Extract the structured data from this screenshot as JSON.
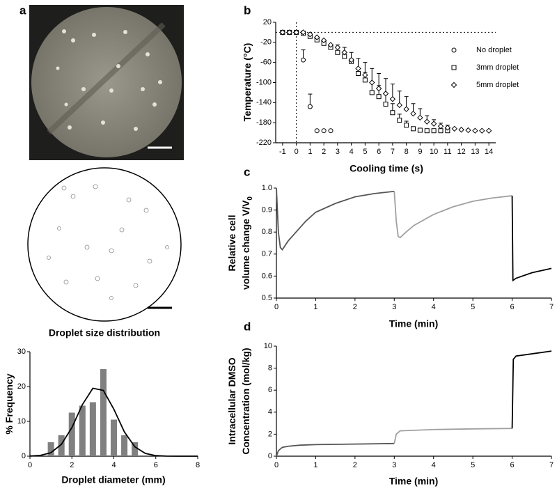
{
  "panel_labels": [
    "a",
    "b",
    "c",
    "d"
  ],
  "chart_data": [
    {
      "type": "bar",
      "title": "Droplet size distribution",
      "xlabel": "Droplet diameter (mm)",
      "ylabel": "% Frequency",
      "xlim": [
        0,
        8
      ],
      "xticks": [
        0,
        2,
        4,
        6,
        8
      ],
      "ylim": [
        0,
        30
      ],
      "yticks": [
        0,
        10,
        20,
        30
      ],
      "series": [
        {
          "type": "bar",
          "color": "#808080",
          "x": [
            1,
            1.5,
            2,
            2.5,
            3,
            3.5,
            4,
            4.5,
            5
          ],
          "values": [
            4,
            6,
            12.5,
            14.5,
            15.5,
            25,
            10.5,
            6,
            4
          ]
        },
        {
          "type": "line",
          "color": "#000000",
          "x": [
            0,
            0.5,
            1,
            1.5,
            2,
            2.5,
            3,
            3.5,
            4,
            4.5,
            5,
            5.5,
            6,
            6.5,
            7,
            8
          ],
          "values": [
            0.04,
            0.22,
            1.0,
            3.4,
            8.2,
            14.8,
            19.5,
            18.9,
            13.5,
            7.0,
            2.7,
            0.8,
            0.16,
            0.02,
            0,
            0
          ]
        }
      ]
    },
    {
      "type": "scatter",
      "xlabel": "Cooling time (s)",
      "ylabel": "Temperature (°C)",
      "xlim": [
        -1.5,
        14.5
      ],
      "xticks": [
        -1,
        0,
        1,
        2,
        3,
        4,
        5,
        6,
        7,
        8,
        9,
        10,
        11,
        12,
        13,
        14
      ],
      "ylim": [
        -220,
        20
      ],
      "yticks": [
        20,
        -20,
        -60,
        -100,
        -140,
        -180,
        -220
      ],
      "hline": 0,
      "vline": 0,
      "legend": "upper right",
      "series": [
        {
          "name": "No droplet",
          "marker": "circle",
          "color": "#000000",
          "x": [
            -1,
            -0.5,
            0,
            0.5,
            1,
            1.5,
            2,
            2.5
          ],
          "values": [
            0,
            0,
            0,
            -55,
            -148,
            -196,
            -196,
            -196
          ],
          "errors": [
            null,
            null,
            null,
            20,
            25,
            null,
            null,
            null
          ]
        },
        {
          "name": "3mm droplet",
          "marker": "square",
          "color": "#000000",
          "x": [
            -1,
            -0.5,
            0,
            0.5,
            1,
            1.5,
            2,
            2.5,
            3,
            3.5,
            4,
            4.5,
            5,
            5.5,
            6,
            6.5,
            7,
            7.5,
            8,
            8.5,
            9,
            9.5,
            10,
            10.5,
            11
          ],
          "values": [
            0,
            0,
            0,
            -2,
            -8,
            -15,
            -22,
            -30,
            -40,
            -48,
            -58,
            -82,
            -95,
            -120,
            -128,
            -143,
            -160,
            -175,
            -185,
            -192,
            -195,
            -196,
            -196,
            -196,
            -196
          ],
          "errors": [
            null,
            null,
            null,
            null,
            null,
            null,
            null,
            null,
            null,
            null,
            5,
            10,
            15,
            20,
            22,
            22,
            18,
            12,
            8,
            null,
            null,
            null,
            null,
            null,
            null
          ]
        },
        {
          "name": "5mm droplet",
          "marker": "diamond",
          "color": "#000000",
          "x": [
            -1,
            -0.5,
            0,
            0.5,
            1,
            1.5,
            2,
            2.5,
            3,
            3.5,
            4,
            4.5,
            5,
            5.5,
            6,
            6.5,
            7,
            7.5,
            8,
            8.5,
            9,
            9.5,
            10,
            10.5,
            11,
            11.5,
            12,
            12.5,
            13,
            13.5,
            14
          ],
          "values": [
            0,
            0,
            0,
            0,
            -4,
            -10,
            -16,
            -25,
            -30,
            -40,
            -55,
            -72,
            -85,
            -100,
            -112,
            -122,
            -133,
            -145,
            -153,
            -162,
            -170,
            -178,
            -182,
            -187,
            -190,
            -192,
            -194,
            -195,
            -196,
            -196,
            -196
          ],
          "errors": [
            null,
            null,
            null,
            null,
            null,
            null,
            null,
            null,
            5,
            10,
            15,
            20,
            25,
            28,
            30,
            30,
            30,
            28,
            25,
            20,
            18,
            12,
            8,
            6,
            5,
            null,
            null,
            null,
            null,
            null,
            null
          ]
        }
      ]
    },
    {
      "type": "line",
      "xlabel": "Time (min)",
      "ylabel": [
        "Relative cell",
        "volume change V/V"
      ],
      "ylabel_sub": "0",
      "xlim": [
        0,
        7
      ],
      "xticks": [
        0,
        1,
        2,
        3,
        4,
        5,
        6,
        7
      ],
      "ylim": [
        0.5,
        1
      ],
      "yticks": [
        0.5,
        0.6,
        0.7,
        0.8,
        0.9,
        {
          "value": 1,
          "label": "1.0"
        }
      ],
      "series": [
        {
          "color": "#555555",
          "x": [
            0,
            0.05,
            0.1,
            0.15,
            0.3,
            0.5,
            0.75,
            1,
            1.5,
            2,
            2.5,
            3
          ],
          "values": [
            1.0,
            0.8,
            0.73,
            0.72,
            0.76,
            0.8,
            0.85,
            0.89,
            0.93,
            0.96,
            0.975,
            0.985
          ]
        },
        {
          "color": "#a0a0a0",
          "x": [
            3,
            3.05,
            3.1,
            3.15,
            3.3,
            3.5,
            4,
            4.5,
            5,
            5.5,
            6
          ],
          "values": [
            0.985,
            0.85,
            0.78,
            0.775,
            0.8,
            0.83,
            0.88,
            0.915,
            0.94,
            0.955,
            0.965
          ]
        },
        {
          "color": "#000000",
          "x": [
            6,
            6.02,
            6.1,
            6.5,
            7
          ],
          "values": [
            0.965,
            0.58,
            0.59,
            0.615,
            0.635
          ]
        }
      ]
    },
    {
      "type": "line",
      "xlabel": "Time (min)",
      "ylabel": [
        "Intracellular DMSO",
        "Concentration (mol/kg)"
      ],
      "xlim": [
        0,
        7
      ],
      "xticks": [
        0,
        1,
        2,
        3,
        4,
        5,
        6,
        7
      ],
      "ylim": [
        0,
        10
      ],
      "yticks": [
        0,
        2,
        4,
        6,
        8,
        10
      ],
      "series": [
        {
          "color": "#555555",
          "x": [
            0,
            0.05,
            0.15,
            0.3,
            0.6,
            1,
            2,
            3
          ],
          "values": [
            0,
            0.5,
            0.8,
            0.9,
            1.0,
            1.05,
            1.1,
            1.15
          ]
        },
        {
          "color": "#a0a0a0",
          "x": [
            3,
            3.05,
            3.15,
            3.5,
            4,
            5,
            6
          ],
          "values": [
            1.15,
            2.0,
            2.3,
            2.35,
            2.42,
            2.48,
            2.52
          ]
        },
        {
          "color": "#000000",
          "x": [
            6,
            6.03,
            6.1,
            6.5,
            7
          ],
          "values": [
            2.52,
            8.8,
            9.1,
            9.3,
            9.55
          ]
        }
      ]
    }
  ]
}
